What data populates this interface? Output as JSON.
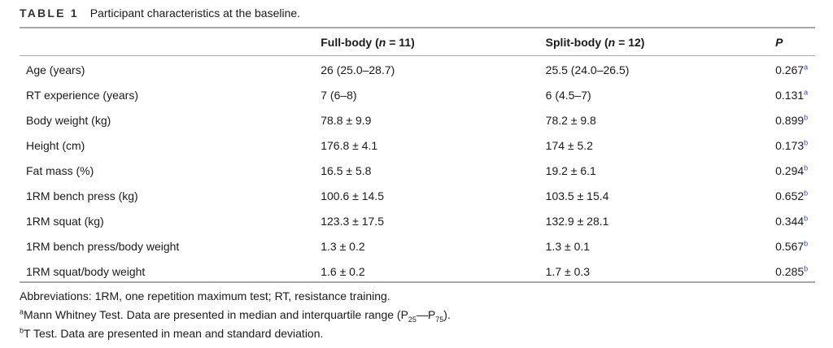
{
  "caption": {
    "label": "TABLE 1",
    "text": "Participant characteristics at the baseline."
  },
  "header": {
    "col1": "",
    "col2": {
      "pre": "Full-body (",
      "var": "n",
      "post": " = 11)"
    },
    "col3": {
      "pre": "Split-body (",
      "var": "n",
      "post": " = 12)"
    },
    "col4": "P"
  },
  "rows": [
    {
      "label": "Age (years)",
      "full": "26 (25.0–28.7)",
      "split": "25.5 (24.0–26.5)",
      "p": "0.267",
      "ref": "a"
    },
    {
      "label": "RT experience (years)",
      "full": "7 (6–8)",
      "split": "6 (4.5–7)",
      "p": "0.131",
      "ref": "a"
    },
    {
      "label": "Body weight (kg)",
      "full": "78.8 ± 9.9",
      "split": "78.2 ± 9.8",
      "p": "0.899",
      "ref": "b"
    },
    {
      "label": "Height (cm)",
      "full": "176.8 ± 4.1",
      "split": "174 ± 5.2",
      "p": "0.173",
      "ref": "b"
    },
    {
      "label": "Fat mass (%)",
      "full": "16.5 ± 5.8",
      "split": "19.2 ± 6.1",
      "p": "0.294",
      "ref": "b"
    },
    {
      "label": "1RM bench press (kg)",
      "full": "100.6 ± 14.5",
      "split": "103.5 ± 15.4",
      "p": "0.652",
      "ref": "b"
    },
    {
      "label": "1RM squat (kg)",
      "full": "123.3 ± 17.5",
      "split": "132.9 ± 28.1",
      "p": "0.344",
      "ref": "b"
    },
    {
      "label": "1RM bench press/body weight",
      "full": "1.3 ± 0.2",
      "split": "1.3 ± 0.1",
      "p": "0.567",
      "ref": "b"
    },
    {
      "label": "1RM squat/body weight",
      "full": "1.6 ± 0.2",
      "split": "1.7 ± 0.3",
      "p": "0.285",
      "ref": "b"
    }
  ],
  "notes": {
    "abbreviations": "Abbreviations: 1RM, one repetition maximum test; RT, resistance training.",
    "a_mark": "a",
    "a_text_pre": "Mann Whitney Test. Data are presented in median and interquartile range (P",
    "a_sub1": "25",
    "a_dash": "—P",
    "a_sub2": "75",
    "a_text_post": ").",
    "b_mark": "b",
    "b_text": "T Test. Data are presented in mean and standard deviation."
  }
}
